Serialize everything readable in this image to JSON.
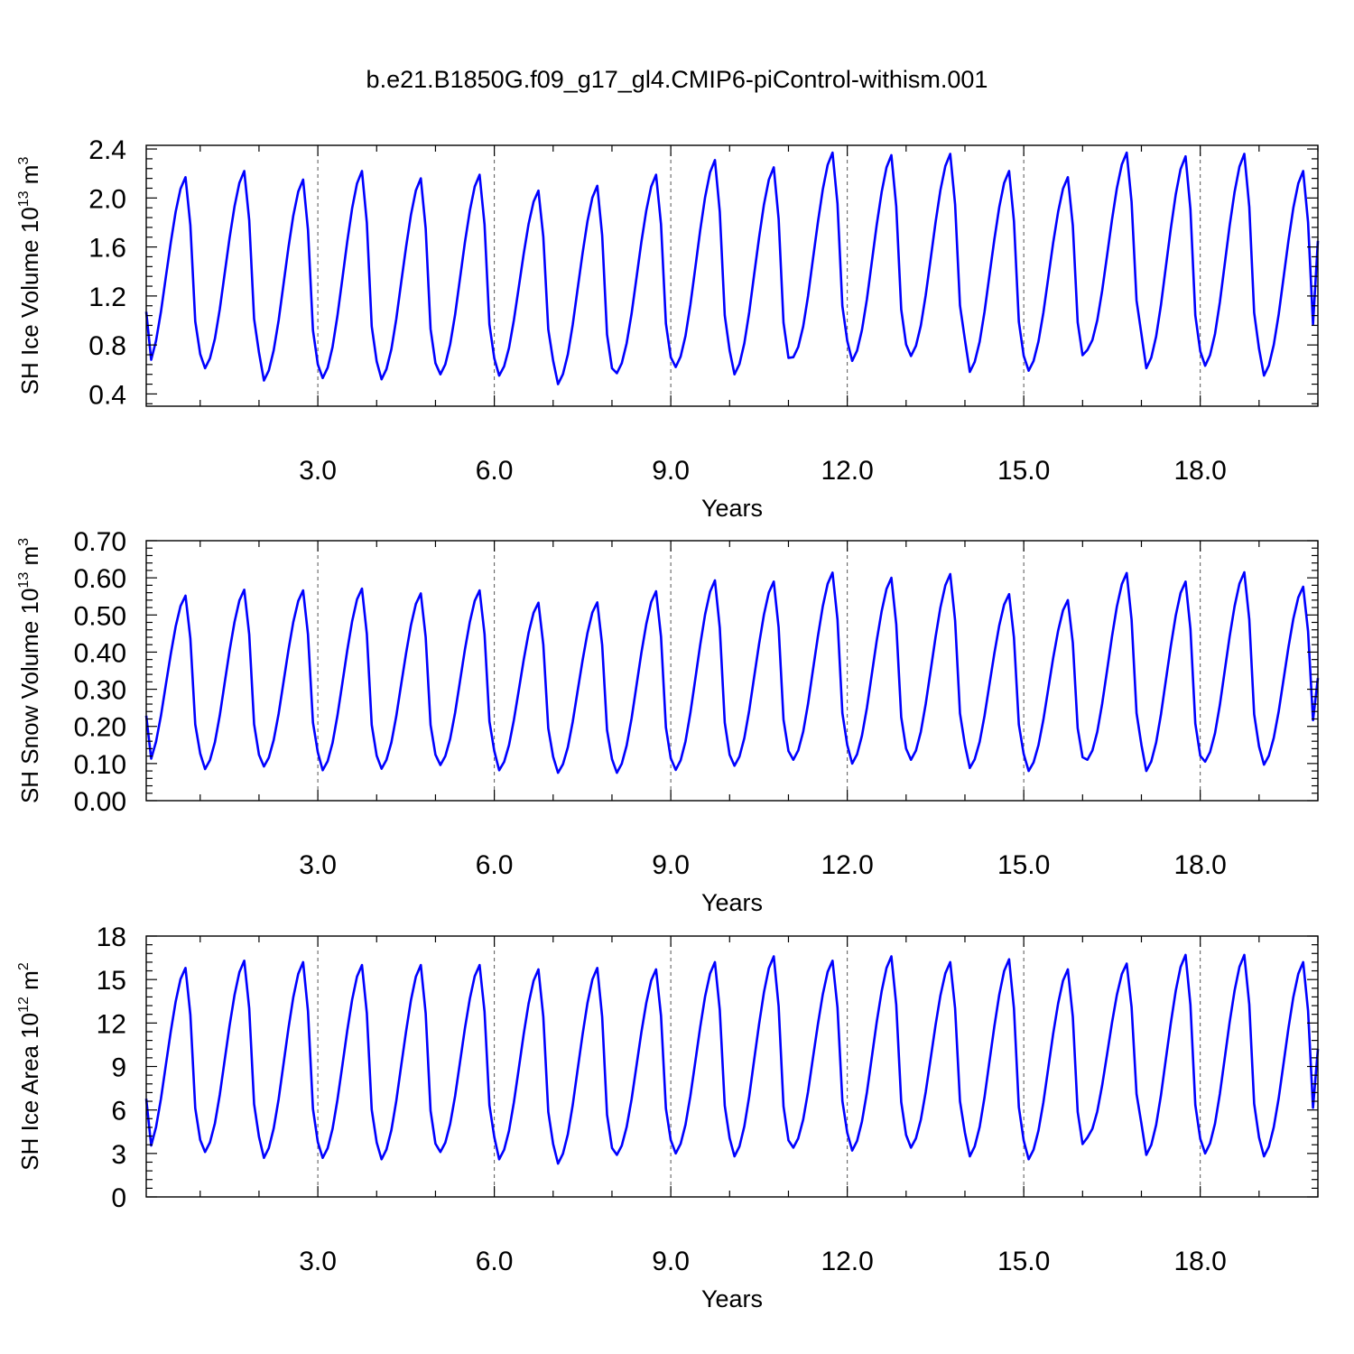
{
  "title": "b.e21.B1850G.f09_g17_gl4.CMIP6-piControl-withism.001",
  "style": {
    "line_color": "#0000ff",
    "axis_color": "#000000",
    "grid_color": "#555555"
  },
  "chart_data": [
    {
      "type": "line",
      "ylabel": {
        "prefix": "SH Ice Volume 10",
        "exp": "13",
        "unit": " m",
        "unit_exp": "3"
      },
      "xlabel": "Years",
      "xlim": [
        0.083,
        20
      ],
      "ylim": [
        0.3,
        2.43
      ],
      "xticks": [
        3.0,
        6.0,
        9.0,
        12.0,
        15.0,
        18.0
      ],
      "xtick_labels": [
        "3.0",
        "6.0",
        "9.0",
        "12.0",
        "15.0",
        "18.0"
      ],
      "yticks": [
        0.4,
        0.8,
        1.2,
        1.6,
        2.0,
        2.4
      ],
      "ytick_labels": [
        "0.4",
        "0.8",
        "1.2",
        "1.6",
        "2.0",
        "2.4"
      ],
      "vertical_grid": "dashed at major x ticks",
      "minima": [
        0.6,
        0.61,
        0.51,
        0.53,
        0.52,
        0.56,
        0.55,
        0.48,
        0.57,
        0.62,
        0.56,
        0.7,
        0.67,
        0.71,
        0.58,
        0.59,
        0.76,
        0.61,
        0.63,
        0.55
      ],
      "maxima": [
        2.17,
        2.22,
        2.15,
        2.22,
        2.16,
        2.19,
        2.06,
        2.1,
        2.19,
        2.31,
        2.25,
        2.37,
        2.35,
        2.36,
        2.22,
        2.17,
        2.37,
        2.34,
        2.36,
        2.22
      ],
      "end_value": 1.65
    },
    {
      "type": "line",
      "ylabel": {
        "prefix": "SH Snow Volume 10",
        "exp": "13",
        "unit": " m",
        "unit_exp": "3"
      },
      "xlabel": "Years",
      "xlim": [
        0.083,
        20
      ],
      "ylim": [
        0.0,
        0.7
      ],
      "xticks": [
        3.0,
        6.0,
        9.0,
        12.0,
        15.0,
        18.0
      ],
      "xtick_labels": [
        "3.0",
        "6.0",
        "9.0",
        "12.0",
        "15.0",
        "18.0"
      ],
      "yticks": [
        0.0,
        0.1,
        0.2,
        0.3,
        0.4,
        0.5,
        0.6,
        0.7
      ],
      "ytick_labels": [
        "0.00",
        "0.10",
        "0.20",
        "0.30",
        "0.40",
        "0.50",
        "0.60",
        "0.70"
      ],
      "vertical_grid": "dashed at major x ticks",
      "minima": [
        0.09,
        0.085,
        0.092,
        0.082,
        0.086,
        0.096,
        0.082,
        0.075,
        0.075,
        0.083,
        0.094,
        0.11,
        0.1,
        0.11,
        0.088,
        0.08,
        0.11,
        0.08,
        0.105,
        0.097
      ],
      "maxima": [
        0.552,
        0.568,
        0.566,
        0.571,
        0.558,
        0.566,
        0.533,
        0.534,
        0.564,
        0.593,
        0.59,
        0.614,
        0.6,
        0.61,
        0.556,
        0.54,
        0.613,
        0.59,
        0.615,
        0.576
      ],
      "end_value": 0.33
    },
    {
      "type": "line",
      "ylabel": {
        "prefix": "SH Ice Area 10",
        "exp": "12",
        "unit": " m",
        "unit_exp": "2"
      },
      "xlabel": "Years",
      "xlim": [
        0.083,
        20
      ],
      "ylim": [
        0,
        18
      ],
      "xticks": [
        3.0,
        6.0,
        9.0,
        12.0,
        15.0,
        18.0
      ],
      "xtick_labels": [
        "3.0",
        "6.0",
        "9.0",
        "12.0",
        "15.0",
        "18.0"
      ],
      "yticks": [
        0,
        3,
        6,
        9,
        12,
        15,
        18
      ],
      "ytick_labels": [
        "0",
        "3",
        "6",
        "9",
        "12",
        "15",
        "18"
      ],
      "vertical_grid": "dashed at major x ticks",
      "minima": [
        2.9,
        3.1,
        2.7,
        2.7,
        2.6,
        3.1,
        2.6,
        2.3,
        2.9,
        3.0,
        2.8,
        3.4,
        3.2,
        3.4,
        2.8,
        2.6,
        4.1,
        2.9,
        3.0,
        2.8
      ],
      "maxima": [
        15.8,
        16.3,
        16.2,
        16.0,
        16.0,
        16.0,
        15.7,
        15.8,
        15.7,
        16.2,
        16.6,
        16.3,
        16.6,
        16.2,
        16.4,
        15.7,
        16.1,
        16.7,
        16.7,
        16.2
      ],
      "end_value": 10.2
    }
  ]
}
